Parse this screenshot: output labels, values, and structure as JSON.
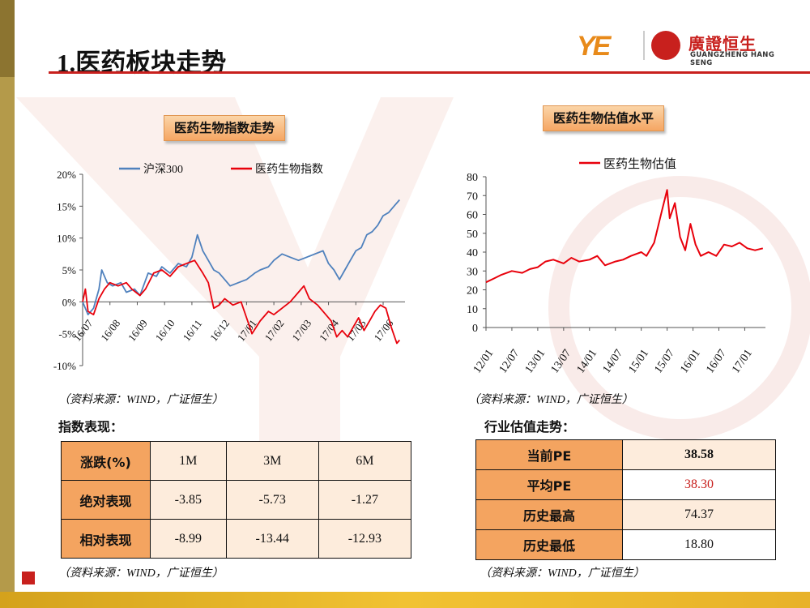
{
  "header": {
    "title": "1.医药板块走势",
    "logo_ye": "YE",
    "logo_cn": "廣證恒生",
    "logo_en": "GUANGZHENG HANG SENG"
  },
  "colors": {
    "hs300": "#4f81bd",
    "pharma": "#e8000b",
    "accent": "#c8201d",
    "header_fill": "#f4a460"
  },
  "left_chart": {
    "label": "医药生物指数走势",
    "source": "（资料来源：WIND，广证恒生）"
  },
  "right_chart": {
    "label": "医药生物估值水平",
    "source": "（资料来源：WIND，广证恒生）"
  },
  "chart_data": [
    {
      "type": "line",
      "title": "医药生物指数走势",
      "legend_position": "top",
      "x": [
        "16/07",
        "16/08",
        "16/09",
        "16/10",
        "16/11",
        "16/12",
        "17/01",
        "17/02",
        "17/03",
        "17/04",
        "17/05",
        "17/06"
      ],
      "y_ticks": [
        "20%",
        "15%",
        "10%",
        "5%",
        "0%",
        "-5%",
        "-10%"
      ],
      "ylim": [
        -10,
        20
      ],
      "series": [
        {
          "name": "沪深300",
          "color": "#4f81bd",
          "points": [
            [
              0,
              0
            ],
            [
              0.2,
              -2
            ],
            [
              0.4,
              -1
            ],
            [
              0.6,
              2
            ],
            [
              0.7,
              5
            ],
            [
              0.9,
              3
            ],
            [
              1.1,
              2.5
            ],
            [
              1.4,
              3
            ],
            [
              1.6,
              1.5
            ],
            [
              1.9,
              2
            ],
            [
              2.1,
              1
            ],
            [
              2.4,
              4.5
            ],
            [
              2.7,
              4
            ],
            [
              2.9,
              5.5
            ],
            [
              3.2,
              4.5
            ],
            [
              3.5,
              6
            ],
            [
              3.8,
              5.5
            ],
            [
              4,
              7
            ],
            [
              4.2,
              10.5
            ],
            [
              4.4,
              8
            ],
            [
              4.6,
              6.5
            ],
            [
              4.8,
              5
            ],
            [
              5,
              4.5
            ],
            [
              5.2,
              3.5
            ],
            [
              5.4,
              2.5
            ],
            [
              5.7,
              3
            ],
            [
              6,
              3.5
            ],
            [
              6.3,
              4.5
            ],
            [
              6.5,
              5
            ],
            [
              6.8,
              5.5
            ],
            [
              7,
              6.5
            ],
            [
              7.3,
              7.5
            ],
            [
              7.6,
              7
            ],
            [
              7.9,
              6.5
            ],
            [
              8.2,
              7
            ],
            [
              8.5,
              7.5
            ],
            [
              8.8,
              8
            ],
            [
              9,
              6
            ],
            [
              9.2,
              5
            ],
            [
              9.4,
              3.5
            ],
            [
              9.6,
              5
            ],
            [
              9.8,
              6.5
            ],
            [
              10,
              8
            ],
            [
              10.2,
              8.5
            ],
            [
              10.4,
              10.5
            ],
            [
              10.6,
              11
            ],
            [
              10.8,
              12
            ],
            [
              11,
              13.5
            ],
            [
              11.2,
              14
            ],
            [
              11.4,
              15
            ],
            [
              11.6,
              16
            ]
          ]
        },
        {
          "name": "医药生物指数",
          "color": "#e8000b",
          "points": [
            [
              0,
              0
            ],
            [
              0.1,
              2
            ],
            [
              0.2,
              -1.5
            ],
            [
              0.4,
              -2
            ],
            [
              0.6,
              0.5
            ],
            [
              0.8,
              2
            ],
            [
              1,
              3
            ],
            [
              1.3,
              2.5
            ],
            [
              1.6,
              3
            ],
            [
              1.8,
              2
            ],
            [
              2.1,
              1
            ],
            [
              2.3,
              2
            ],
            [
              2.6,
              4.5
            ],
            [
              2.9,
              5
            ],
            [
              3.2,
              4
            ],
            [
              3.5,
              5.5
            ],
            [
              3.8,
              6
            ],
            [
              4.1,
              6.5
            ],
            [
              4.4,
              4.5
            ],
            [
              4.6,
              3
            ],
            [
              4.8,
              -1
            ],
            [
              5,
              -0.5
            ],
            [
              5.2,
              0.5
            ],
            [
              5.5,
              -0.5
            ],
            [
              5.8,
              0
            ],
            [
              6,
              -2.5
            ],
            [
              6.2,
              -5
            ],
            [
              6.5,
              -3
            ],
            [
              6.8,
              -1.5
            ],
            [
              7,
              -2
            ],
            [
              7.3,
              -1
            ],
            [
              7.6,
              0
            ],
            [
              7.9,
              1.5
            ],
            [
              8.1,
              2.5
            ],
            [
              8.3,
              0.5
            ],
            [
              8.6,
              -0.5
            ],
            [
              8.9,
              -2
            ],
            [
              9.1,
              -3
            ],
            [
              9.3,
              -5.5
            ],
            [
              9.5,
              -4.5
            ],
            [
              9.7,
              -5.5
            ],
            [
              9.9,
              -4
            ],
            [
              10.1,
              -2.5
            ],
            [
              10.3,
              -4.5
            ],
            [
              10.5,
              -3
            ],
            [
              10.7,
              -1.5
            ],
            [
              10.9,
              -0.5
            ],
            [
              11.1,
              -1
            ],
            [
              11.3,
              -4
            ],
            [
              11.5,
              -6.5
            ],
            [
              11.6,
              -6
            ]
          ]
        }
      ]
    },
    {
      "type": "line",
      "title": "医药生物估值水平",
      "legend_position": "top",
      "x": [
        "12/01",
        "12/07",
        "13/01",
        "13/07",
        "14/01",
        "14/07",
        "15/01",
        "15/07",
        "16/01",
        "16/07",
        "17/01"
      ],
      "y_ticks": [
        80,
        70,
        60,
        50,
        40,
        30,
        20,
        10,
        0
      ],
      "ylim": [
        0,
        80
      ],
      "series": [
        {
          "name": "医药生物估值",
          "color": "#e8000b",
          "points": [
            [
              0,
              24
            ],
            [
              0.3,
              26
            ],
            [
              0.6,
              28
            ],
            [
              1,
              30
            ],
            [
              1.4,
              29
            ],
            [
              1.7,
              31
            ],
            [
              2,
              32
            ],
            [
              2.3,
              35
            ],
            [
              2.6,
              36
            ],
            [
              3,
              34
            ],
            [
              3.3,
              37
            ],
            [
              3.6,
              35
            ],
            [
              4,
              36
            ],
            [
              4.3,
              38
            ],
            [
              4.6,
              33
            ],
            [
              5,
              35
            ],
            [
              5.3,
              36
            ],
            [
              5.6,
              38
            ],
            [
              6,
              40
            ],
            [
              6.2,
              38
            ],
            [
              6.5,
              45
            ],
            [
              6.8,
              62
            ],
            [
              7,
              73
            ],
            [
              7.1,
              58
            ],
            [
              7.3,
              66
            ],
            [
              7.5,
              48
            ],
            [
              7.7,
              41
            ],
            [
              7.9,
              55
            ],
            [
              8.1,
              44
            ],
            [
              8.3,
              38
            ],
            [
              8.6,
              40
            ],
            [
              8.9,
              38
            ],
            [
              9.2,
              44
            ],
            [
              9.5,
              43
            ],
            [
              9.8,
              45
            ],
            [
              10.1,
              42
            ],
            [
              10.4,
              41
            ],
            [
              10.7,
              42
            ]
          ]
        }
      ]
    }
  ],
  "index_perf": {
    "label": "指数表现：",
    "headers": [
      "涨跌(%)",
      "1M",
      "3M",
      "6M"
    ],
    "rows": [
      {
        "label": "绝对表现",
        "values": [
          "-3.85",
          "-5.73",
          "-1.27"
        ]
      },
      {
        "label": "相对表现",
        "values": [
          "-8.99",
          "-13.44",
          "-12.93"
        ]
      }
    ],
    "source": "（资料来源：WIND，广证恒生）"
  },
  "valuation": {
    "label": "行业估值走势：",
    "rows": [
      {
        "label": "当前PE",
        "value": "38.58"
      },
      {
        "label": "平均PE",
        "value": "38.30"
      },
      {
        "label": "历史最高",
        "value": "74.37"
      },
      {
        "label": "历史最低",
        "value": "18.80"
      }
    ],
    "source": "（资料来源：WIND，广证恒生）"
  }
}
